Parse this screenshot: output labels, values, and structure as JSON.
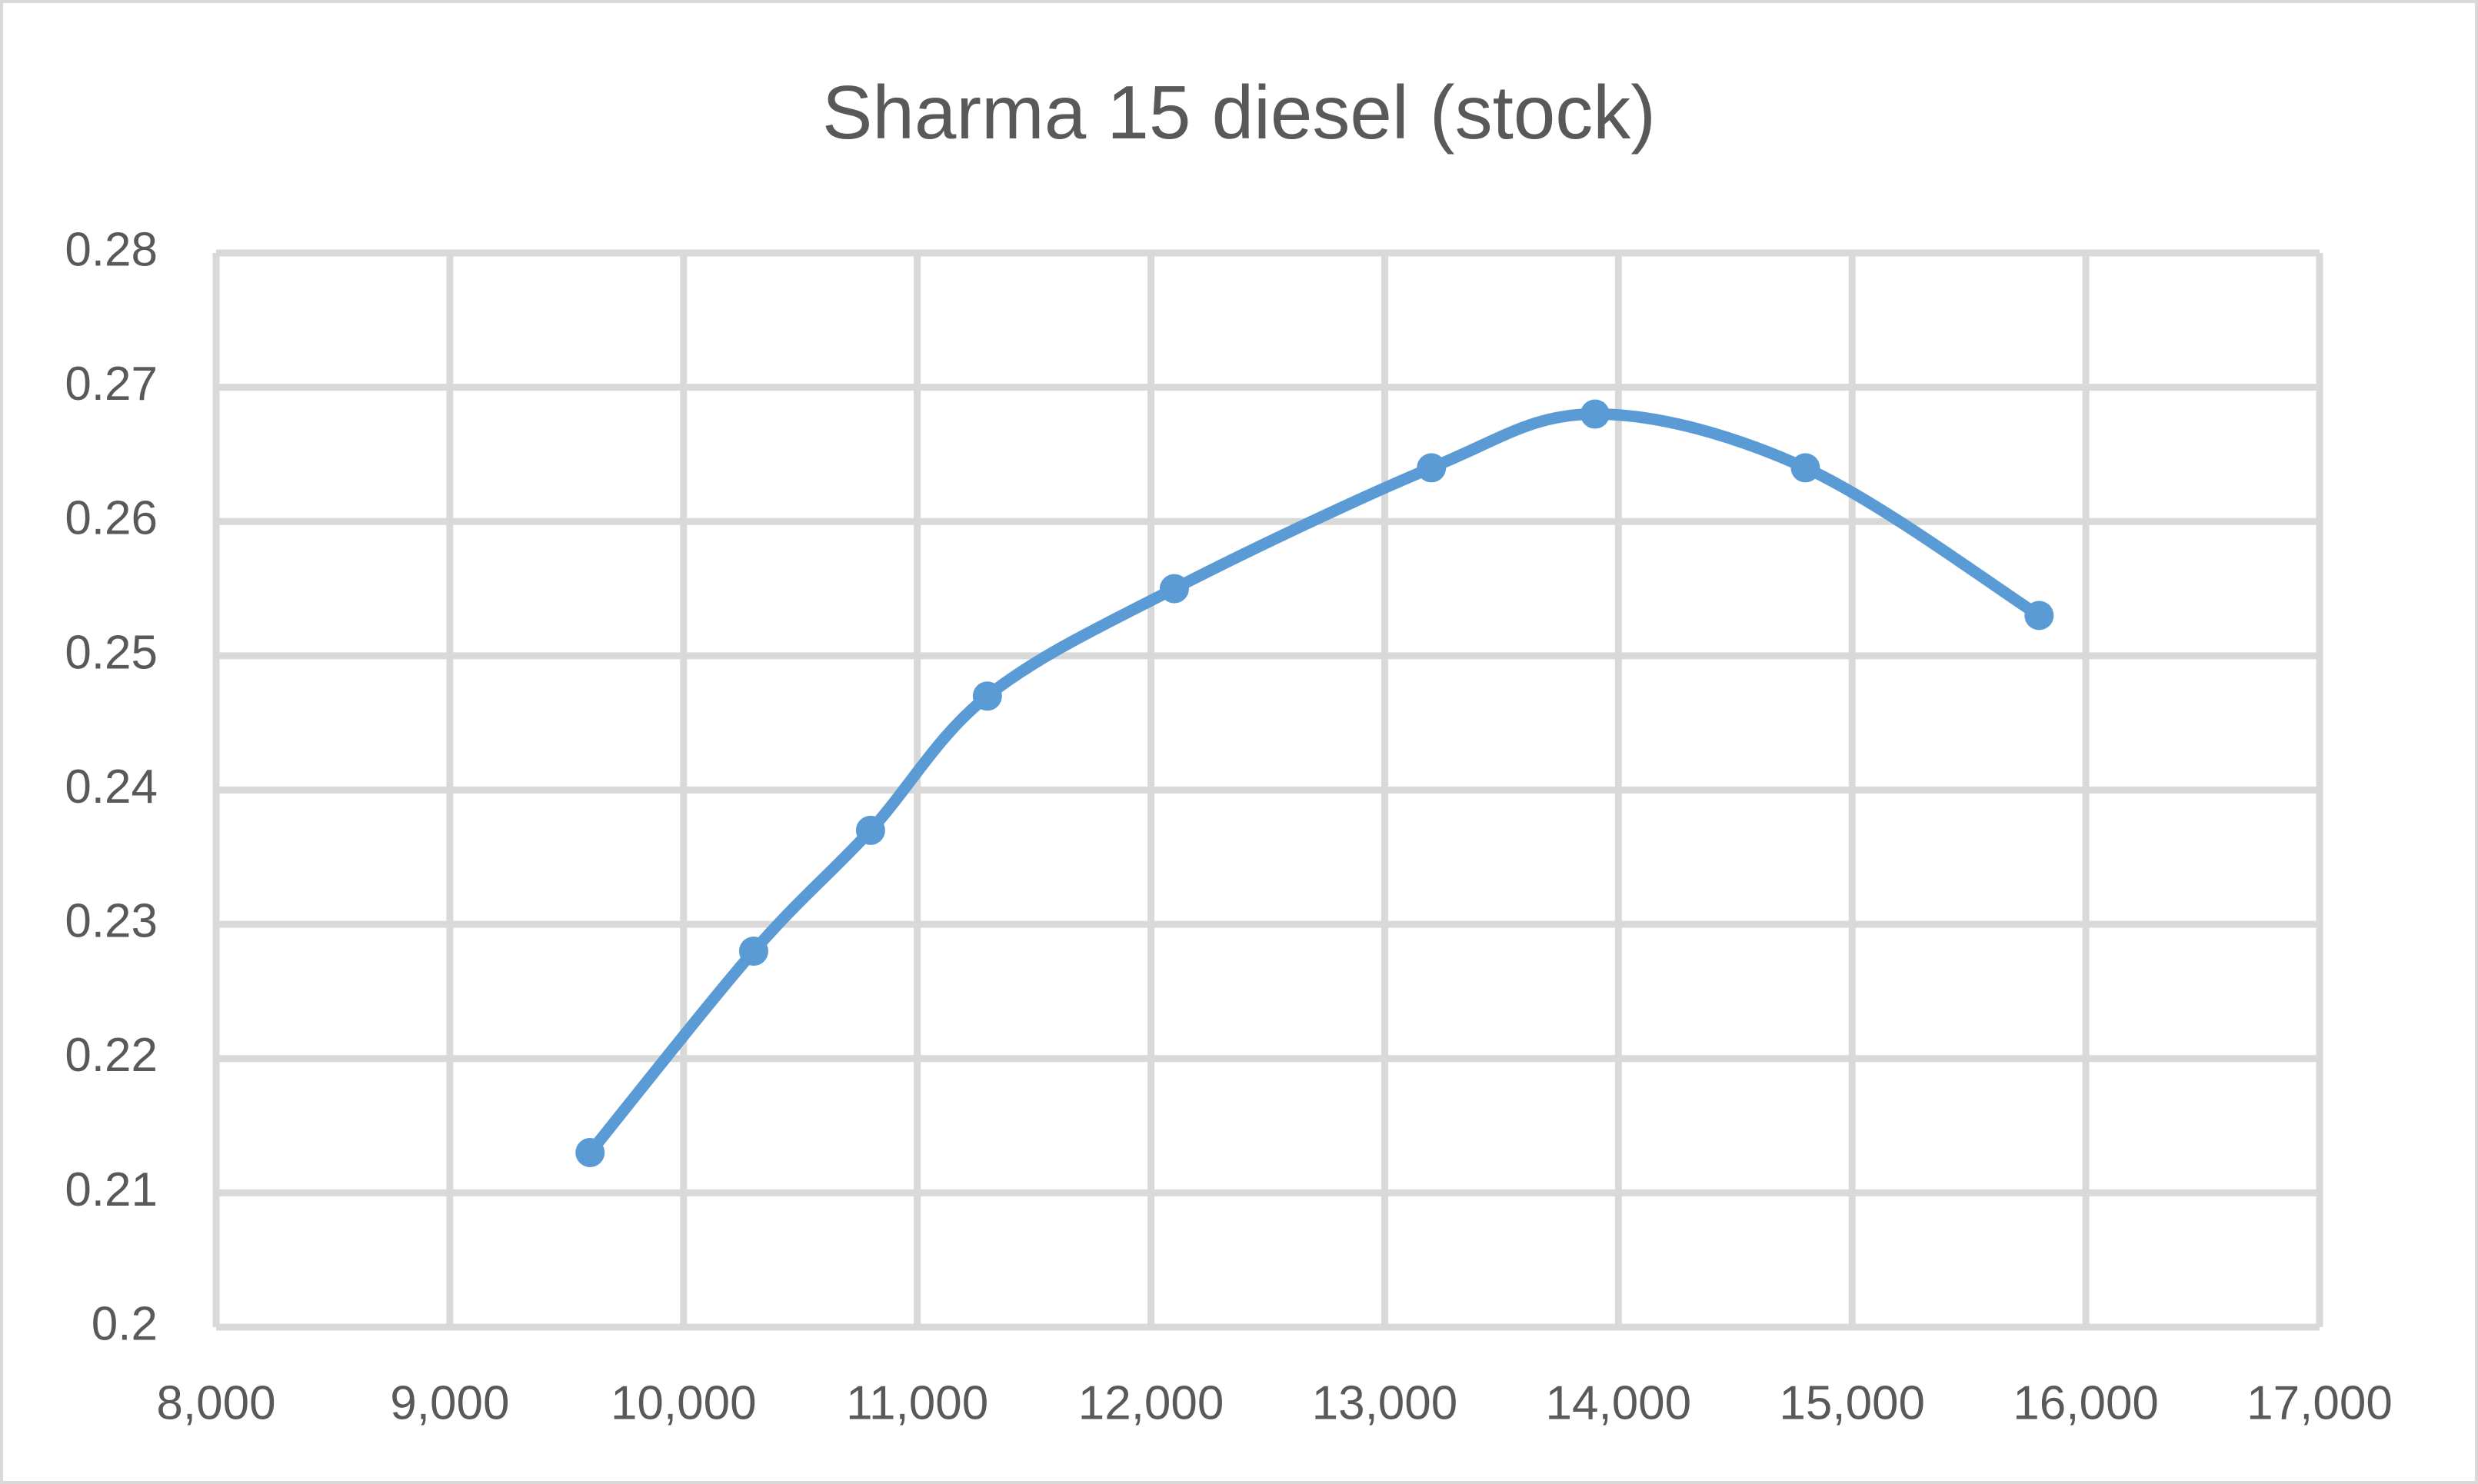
{
  "chart_data": {
    "type": "line",
    "title": "Sharma 15 diesel (stock)",
    "x": [
      9600,
      10300,
      10800,
      11300,
      12100,
      13200,
      13900,
      14800,
      15800
    ],
    "series": [
      {
        "color": "#5b9bd5",
        "values": [
          0.213,
          0.228,
          0.237,
          0.247,
          0.255,
          0.264,
          0.268,
          0.264,
          0.253
        ]
      }
    ],
    "xlim": [
      8000,
      17000
    ],
    "xticks": [
      {
        "value": 8000,
        "label": "8,000"
      },
      {
        "value": 9000,
        "label": "9,000"
      },
      {
        "value": 10000,
        "label": "10,000"
      },
      {
        "value": 11000,
        "label": "11,000"
      },
      {
        "value": 12000,
        "label": "12,000"
      },
      {
        "value": 13000,
        "label": "13,000"
      },
      {
        "value": 14000,
        "label": "14,000"
      },
      {
        "value": 15000,
        "label": "15,000"
      },
      {
        "value": 16000,
        "label": "16,000"
      },
      {
        "value": 17000,
        "label": "17,000"
      }
    ],
    "ylim": [
      0.2,
      0.28
    ],
    "yticks": [
      0.2,
      0.21,
      0.22,
      0.23,
      0.24,
      0.25,
      0.26,
      0.27,
      0.28
    ],
    "grid": true,
    "smooth": true
  }
}
